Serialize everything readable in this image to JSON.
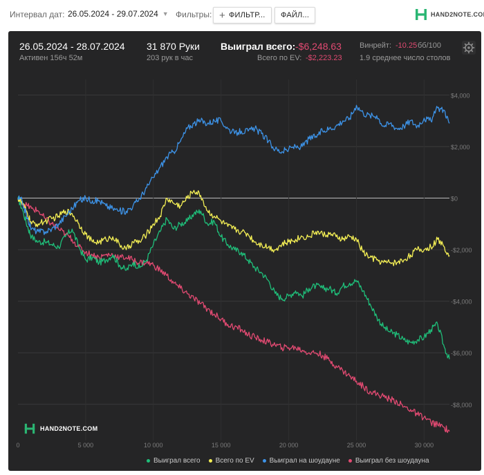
{
  "toolbar": {
    "interval_label": "Интервал дат:",
    "date_range": "26.05.2024 - 29.07.2024",
    "filters_label": "Фильтры:",
    "filter_button": "ФИЛЬТР...",
    "file_button": "ФАЙЛ..."
  },
  "brand": {
    "name": "HAND2NOTE.COM"
  },
  "header": {
    "date_range": "26.05.2024 - 28.07.2024",
    "active": "Активен 156ч 52м",
    "hands": "31 870 Руки",
    "hands_per_hour": "203 рук в час",
    "won_label": "Выиграл всего:",
    "won_value": "-$6,248.63",
    "ev_label": "Всего по EV:",
    "ev_value": "-$2,223.23",
    "winrate_label": "Винрейт:",
    "winrate_value": "-10.25",
    "winrate_unit": "бб/100",
    "tables": "1.9 среднее число столов"
  },
  "colors": {
    "panel_bg": "#252526",
    "total": "#1fbf7a",
    "ev": "#f4ef55",
    "showdown": "#3d93e8",
    "non_showdown": "#e24a72",
    "negative": "#e24a72"
  },
  "chart_data": {
    "type": "line",
    "xlim": [
      0,
      31870
    ],
    "ylim": [
      -9400,
      4600
    ],
    "x_ticks": [
      0,
      5000,
      10000,
      15000,
      20000,
      25000,
      30000
    ],
    "x_tick_labels": [
      "0",
      "5 000",
      "10 000",
      "15 000",
      "20 000",
      "25 000",
      "30 000"
    ],
    "y_ticks": [
      4000,
      2000,
      0,
      -2000,
      -4000,
      -6000,
      -8000
    ],
    "y_tick_labels": [
      "$4,000",
      "$2,000",
      "$0",
      "-$2,000",
      "-$4,000",
      "-$6,000",
      "-$8,000"
    ],
    "grid": true,
    "legend_position": "bottom",
    "series": [
      {
        "name": "Выиграл всего",
        "color": "#1fbf7a",
        "x": [
          0,
          300,
          700,
          1000,
          1500,
          2000,
          2500,
          3000,
          3500,
          4000,
          4500,
          5000,
          5500,
          6000,
          6500,
          7000,
          7500,
          8000,
          8500,
          9000,
          9500,
          10000,
          10500,
          11000,
          11500,
          12000,
          12500,
          13000,
          13500,
          14000,
          14500,
          15000,
          15500,
          16000,
          16500,
          17000,
          17500,
          18000,
          18500,
          19000,
          19500,
          20000,
          20500,
          21000,
          21500,
          22000,
          22500,
          23000,
          23500,
          24000,
          24500,
          25000,
          25500,
          26000,
          26500,
          27000,
          27500,
          28000,
          28500,
          29000,
          29500,
          30000,
          30500,
          31000,
          31500,
          31870
        ],
        "y": [
          0,
          -400,
          -1100,
          -1500,
          -1700,
          -1700,
          -1800,
          -1900,
          -1500,
          -1200,
          -1900,
          -2400,
          -2300,
          -2500,
          -2400,
          -2200,
          -2600,
          -2800,
          -2500,
          -2700,
          -2400,
          -1800,
          -1300,
          -800,
          -1200,
          -1000,
          -900,
          -600,
          -500,
          -1000,
          -900,
          -1500,
          -1800,
          -2000,
          -2100,
          -2400,
          -2700,
          -2900,
          -3200,
          -3700,
          -3900,
          -3800,
          -3600,
          -3800,
          -3500,
          -3400,
          -3500,
          -3500,
          -3700,
          -3400,
          -3300,
          -3200,
          -3600,
          -4100,
          -4600,
          -5000,
          -5200,
          -5300,
          -5500,
          -5600,
          -5500,
          -5400,
          -5100,
          -4900,
          -5800,
          -6249
        ]
      },
      {
        "name": "Всего по EV",
        "color": "#f4ef55",
        "x": [
          0,
          300,
          700,
          1000,
          1500,
          2000,
          2500,
          3000,
          3500,
          4000,
          4500,
          5000,
          5500,
          6000,
          6500,
          7000,
          7500,
          8000,
          8500,
          9000,
          9500,
          10000,
          10500,
          11000,
          11500,
          12000,
          12500,
          13000,
          13500,
          14000,
          14500,
          15000,
          15500,
          16000,
          16500,
          17000,
          17500,
          18000,
          18500,
          19000,
          19500,
          20000,
          20500,
          21000,
          21500,
          22000,
          22500,
          23000,
          23500,
          24000,
          24500,
          25000,
          25500,
          26000,
          26500,
          27000,
          27500,
          28000,
          28500,
          29000,
          29500,
          30000,
          30500,
          31000,
          31500,
          31870
        ],
        "y": [
          0,
          -200,
          -600,
          -1000,
          -1000,
          -900,
          -800,
          -700,
          -500,
          -600,
          -1000,
          -1400,
          -1700,
          -1700,
          -1600,
          -1500,
          -1800,
          -2000,
          -1700,
          -1700,
          -1400,
          -1000,
          -700,
          0,
          -200,
          -300,
          0,
          300,
          100,
          -500,
          -700,
          -900,
          -1100,
          -1200,
          -1300,
          -1400,
          -1700,
          -1800,
          -1900,
          -2000,
          -1800,
          -1700,
          -1600,
          -1500,
          -1500,
          -1300,
          -1400,
          -1400,
          -1500,
          -1600,
          -1500,
          -1600,
          -2100,
          -2300,
          -2400,
          -2500,
          -2500,
          -2500,
          -2400,
          -2200,
          -2000,
          -2000,
          -1900,
          -1600,
          -1900,
          -2223
        ]
      },
      {
        "name": "Выиграл на шоудауне",
        "color": "#3d93e8",
        "x": [
          0,
          300,
          700,
          1000,
          1500,
          2000,
          2500,
          3000,
          3500,
          4000,
          4500,
          5000,
          5500,
          6000,
          6500,
          7000,
          7500,
          8000,
          8500,
          9000,
          9500,
          10000,
          10500,
          11000,
          11500,
          12000,
          12500,
          13000,
          13500,
          14000,
          14500,
          15000,
          15500,
          16000,
          16500,
          17000,
          17500,
          18000,
          18500,
          19000,
          19500,
          20000,
          20500,
          21000,
          21500,
          22000,
          22500,
          23000,
          23500,
          24000,
          24500,
          25000,
          25500,
          26000,
          26500,
          27000,
          27500,
          28000,
          28500,
          29000,
          29500,
          30000,
          30500,
          31000,
          31500,
          31870
        ],
        "y": [
          0,
          -100,
          -800,
          -1200,
          -1300,
          -1300,
          -1200,
          -1000,
          -700,
          -400,
          -100,
          0,
          -100,
          -100,
          -300,
          -400,
          -500,
          -500,
          -300,
          0,
          400,
          800,
          1200,
          1600,
          1800,
          2200,
          2700,
          2900,
          3000,
          2900,
          3000,
          3000,
          2700,
          2500,
          2600,
          2600,
          2700,
          2500,
          2200,
          1900,
          1800,
          1900,
          2000,
          2000,
          2300,
          2400,
          2600,
          2700,
          2800,
          3000,
          3100,
          3600,
          3300,
          3200,
          3200,
          2800,
          2900,
          2700,
          2800,
          3000,
          2800,
          3100,
          3000,
          3500,
          3400,
          2900
        ]
      },
      {
        "name": "Выиграл без шоудауна",
        "color": "#e24a72",
        "x": [
          0,
          300,
          700,
          1000,
          1500,
          2000,
          2500,
          3000,
          3500,
          4000,
          4500,
          5000,
          5500,
          6000,
          6500,
          7000,
          7500,
          8000,
          8500,
          9000,
          9500,
          10000,
          10500,
          11000,
          11500,
          12000,
          12500,
          13000,
          13500,
          14000,
          14500,
          15000,
          15500,
          16000,
          16500,
          17000,
          17500,
          18000,
          18500,
          19000,
          19500,
          20000,
          20500,
          21000,
          21500,
          22000,
          22500,
          23000,
          23500,
          24000,
          24500,
          25000,
          25500,
          26000,
          26500,
          27000,
          27500,
          28000,
          28500,
          29000,
          29500,
          30000,
          30500,
          31000,
          31500,
          31870
        ],
        "y": [
          0,
          -200,
          -300,
          -400,
          -500,
          -800,
          -1000,
          -1200,
          -1400,
          -1600,
          -1900,
          -2100,
          -2200,
          -2300,
          -2200,
          -2200,
          -2300,
          -2300,
          -2400,
          -2500,
          -2500,
          -2600,
          -2800,
          -3000,
          -3300,
          -3500,
          -3700,
          -3900,
          -4100,
          -4300,
          -4500,
          -4700,
          -4900,
          -5000,
          -5100,
          -5300,
          -5400,
          -5500,
          -5600,
          -5700,
          -5800,
          -5800,
          -5800,
          -5900,
          -6000,
          -6000,
          -6100,
          -6300,
          -6500,
          -6700,
          -6900,
          -7100,
          -7300,
          -7500,
          -7600,
          -7700,
          -7800,
          -7900,
          -8100,
          -8200,
          -8400,
          -8500,
          -8700,
          -8800,
          -8900,
          -9050
        ]
      }
    ]
  },
  "legend": {
    "items": [
      {
        "label": "Выиграл всего",
        "color": "#1fbf7a"
      },
      {
        "label": "Всего по EV",
        "color": "#f4ef55"
      },
      {
        "label": "Выиграл на шоудауне",
        "color": "#3d93e8"
      },
      {
        "label": "Выиграл без шоудауна",
        "color": "#e24a72"
      }
    ]
  },
  "watermark": {
    "text": "HAND2NOTE.COM"
  },
  "icons": {
    "brand": "h2n-logo-icon",
    "settings": "gear-icon",
    "add": "plus-icon",
    "dropdown": "chevron-down-icon"
  }
}
